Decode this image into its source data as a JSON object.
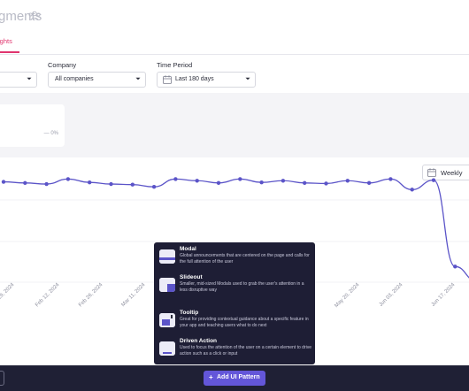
{
  "header": {
    "title": "gments",
    "tab_active": "ights"
  },
  "filters": {
    "company_label": "Company",
    "company_value": "All companies",
    "time_label": "Time Period",
    "time_value": "Last 180 days"
  },
  "summary": {
    "pct": "— 0%"
  },
  "chart_controls": {
    "granularity": "Weekly"
  },
  "chart_data": {
    "type": "line",
    "x_ticks": [
      "Jan 29, 2024",
      "Feb 12, 2024",
      "Feb 26, 2024",
      "Mar 11, 2024",
      "May 20, 2024",
      "Jun 03, 2024",
      "Jun 17, 2024"
    ],
    "values": [
      242,
      240,
      238,
      247,
      241,
      238,
      237,
      233,
      247,
      244,
      240,
      247,
      241,
      244,
      240,
      239,
      244,
      240,
      247,
      228,
      245,
      90,
      64,
      148,
      218,
      194,
      179
    ],
    "series_color": "#5b54c8",
    "grid": true
  },
  "patterns": [
    {
      "title": "Modal",
      "desc": "Global announcements that are centered on the page and calls for the full attention of the user",
      "icon": "modal-icon"
    },
    {
      "title": "Slideout",
      "desc": "Smaller, mid-sized Modals used to grab the user's attention in a less disruptive way",
      "icon": "slideout-icon"
    },
    {
      "title": "Tooltip",
      "desc": "Great for providing contextual guidance about a specific feature in your app and teaching users what to do next",
      "icon": "tooltip-icon"
    },
    {
      "title": "Driven Action",
      "desc": "Used to focus the attention of the user on a certain element to drive action such as a click or input",
      "icon": "driven-action-icon"
    }
  ],
  "bottom_bar": {
    "add_label": "Add UI Pattern",
    "add_icon": "+"
  },
  "colors": {
    "accent": "#e0356e",
    "primary": "#6356d9",
    "dark": "#1f2035"
  }
}
